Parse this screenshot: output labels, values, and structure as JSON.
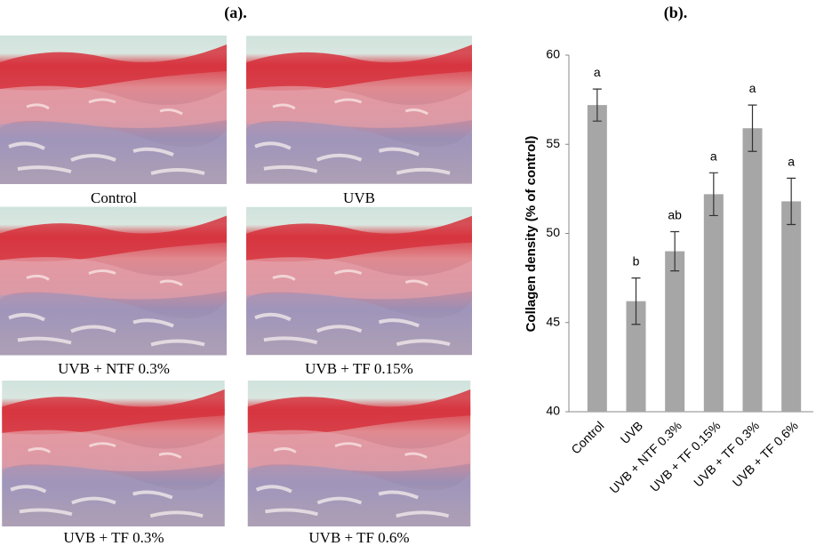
{
  "panel_a": {
    "label": "(a).",
    "images": [
      {
        "caption": "Control"
      },
      {
        "caption": "UVB"
      },
      {
        "caption": "UVB + NTF 0.3%"
      },
      {
        "caption": "UVB + TF 0.15%"
      },
      {
        "caption": "UVB + TF 0.3%"
      },
      {
        "caption": "UVB + TF 0.6%"
      }
    ]
  },
  "chart_data": {
    "type": "bar",
    "title": "(b).",
    "y_label": "Collagen density (% of control)",
    "categories": [
      "Control",
      "UVB",
      "UVB + NTF 0.3%",
      "UVB + TF 0.15%",
      "UVB + TF 0.3%",
      "UVB + TF 0.6%"
    ],
    "values": [
      57.2,
      46.2,
      49.0,
      52.2,
      55.9,
      51.8
    ],
    "errors": [
      0.9,
      1.3,
      1.1,
      1.2,
      1.3,
      1.3
    ],
    "annotations": [
      "a",
      "b",
      "ab",
      "a",
      "a",
      "a"
    ],
    "color": "#a6a6a6",
    "ylim": [
      40,
      60
    ],
    "yticks": [
      40,
      45,
      50,
      55,
      60
    ],
    "grid": false
  }
}
